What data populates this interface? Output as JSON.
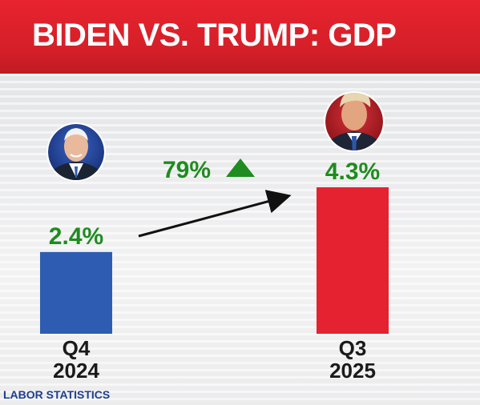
{
  "header": {
    "title": "BIDEN VS. TRUMP: GDP"
  },
  "change": {
    "label": "79%",
    "direction": "up",
    "color": "#1e8c1e"
  },
  "source": "LABOR STATISTICS",
  "colors": {
    "header": "#d41f28",
    "biden_bar": "#2e5cb2",
    "trump_bar": "#e5222f",
    "value_text": "#1e8c1e"
  },
  "chart_data": {
    "type": "bar",
    "title": "BIDEN VS. TRUMP: GDP",
    "categories": [
      "Q4 2024",
      "Q3 2025"
    ],
    "category_lines": [
      [
        "Q4",
        "2024"
      ],
      [
        "Q3",
        "2025"
      ]
    ],
    "values": [
      2.4,
      4.3
    ],
    "value_labels": [
      "2.4%",
      "4.3%"
    ],
    "bar_colors": [
      "#2e5cb2",
      "#e5222f"
    ],
    "avatars": [
      "biden-portrait-icon",
      "trump-portrait-icon"
    ],
    "ylim": [
      0,
      4.3
    ],
    "grid": false
  }
}
